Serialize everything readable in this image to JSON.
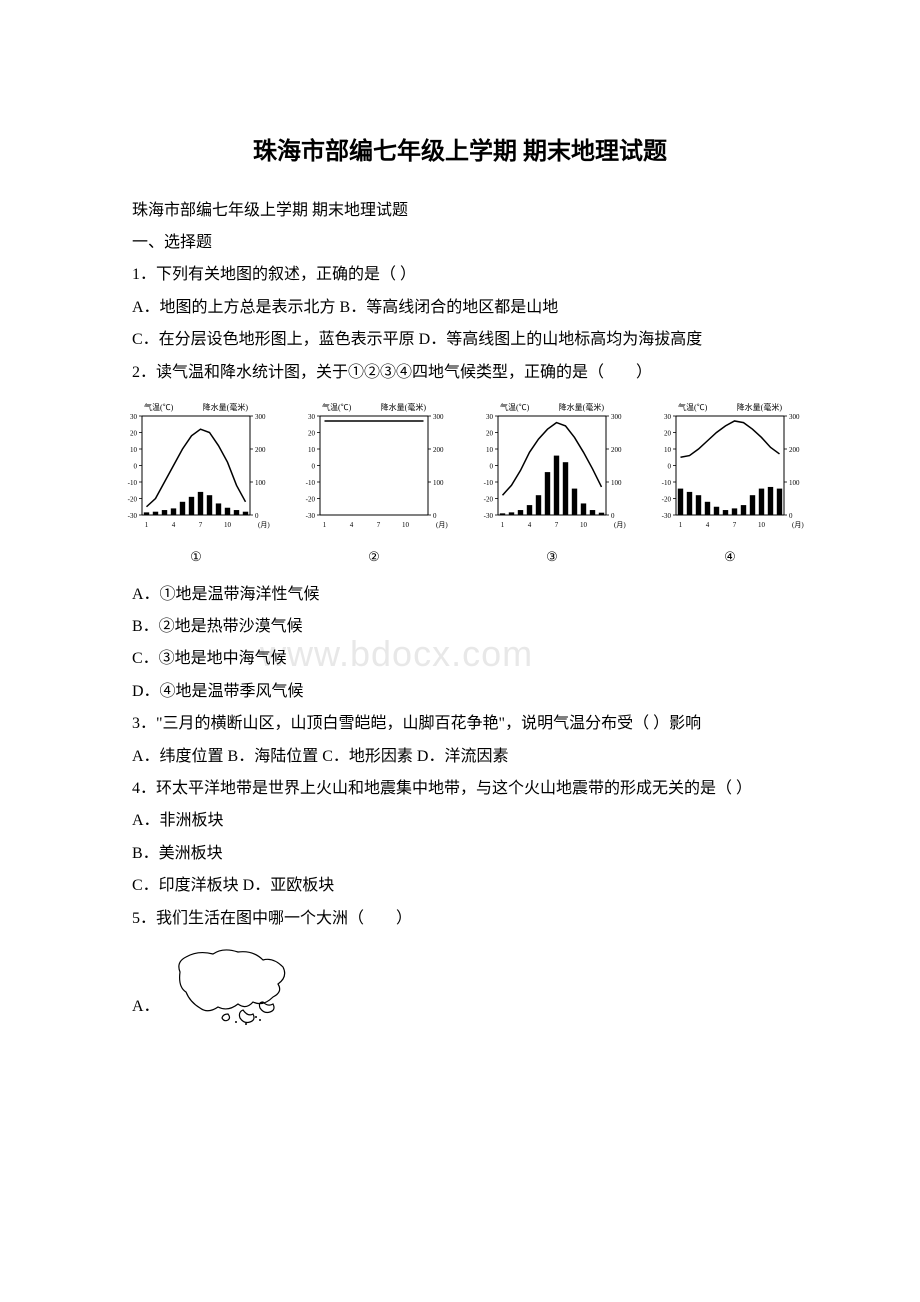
{
  "title": "珠海市部编七年级上学期 期末地理试题",
  "subtitle": "珠海市部编七年级上学期 期末地理试题",
  "section_heading": "一、选择题",
  "watermark": "www.bdocx.com",
  "q1": {
    "stem": "1．下列有关地图的叙述，正确的是（  ）",
    "a": "A．地图的上方总是表示北方 B．等高线闭合的地区都是山地",
    "c": "C．在分层设色地形图上，蓝色表示平原 D．等高线图上的山地标高均为海拔高度"
  },
  "q2": {
    "stem": "2．读气温和降水统计图，关于①②③④四地气候类型，正确的是（　　）",
    "a": "A．①地是温带海洋性气候",
    "b": "B．②地是热带沙漠气候",
    "c": "C．③地是地中海气候",
    "d": "D．④地是温带季风气候"
  },
  "q3": {
    "stem": "3．\"三月的横断山区，山顶白雪皑皑，山脚百花争艳\"，说明气温分布受（  ）影响",
    "options": "A．纬度位置 B．海陆位置 C．地形因素 D．洋流因素"
  },
  "q4": {
    "stem": "4．环太平洋地带是世界上火山和地震集中地带，与这个火山地震带的形成无关的是（  ）",
    "a": "A．非洲板块",
    "b": "B．美洲板块",
    "c": "C．印度洋板块 D．亚欧板块"
  },
  "q5": {
    "stem": "5．我们生活在图中哪一个大洲（　　）",
    "a": "A．"
  },
  "chart_labels": {
    "temp_axis": "气温(℃)",
    "precip_axis": "降水量(毫米)",
    "month": "(月)",
    "temp_ticks": [
      "30",
      "20",
      "10",
      "0",
      "-10",
      "-20",
      "-30"
    ],
    "precip_ticks": [
      "300",
      "200",
      "100",
      "0"
    ],
    "month_ticks": [
      "1",
      "4",
      "7",
      "10"
    ]
  },
  "charts": [
    {
      "id": "①",
      "temp": [
        -25,
        -20,
        -10,
        0,
        10,
        18,
        22,
        20,
        12,
        2,
        -12,
        -22
      ],
      "precip": [
        8,
        10,
        15,
        20,
        40,
        55,
        70,
        60,
        35,
        22,
        15,
        10
      ]
    },
    {
      "id": "②",
      "temp": [
        27,
        27,
        27,
        27,
        27,
        27,
        27,
        27,
        27,
        27,
        27,
        27
      ],
      "precip": [
        0,
        0,
        0,
        0,
        0,
        0,
        0,
        0,
        0,
        0,
        0,
        0
      ]
    },
    {
      "id": "③",
      "temp": [
        -18,
        -12,
        -3,
        8,
        16,
        22,
        26,
        24,
        17,
        8,
        -2,
        -13
      ],
      "precip": [
        5,
        8,
        15,
        30,
        60,
        130,
        180,
        160,
        80,
        35,
        15,
        7
      ]
    },
    {
      "id": "④",
      "temp": [
        5,
        6,
        10,
        15,
        20,
        24,
        27,
        26,
        22,
        17,
        11,
        7
      ],
      "precip": [
        80,
        70,
        60,
        40,
        25,
        15,
        20,
        30,
        60,
        80,
        85,
        80
      ]
    }
  ],
  "colors": {
    "text": "#000000",
    "bg": "#ffffff",
    "chart_line": "#000000",
    "chart_bar": "#000000",
    "chart_axis": "#000000"
  }
}
